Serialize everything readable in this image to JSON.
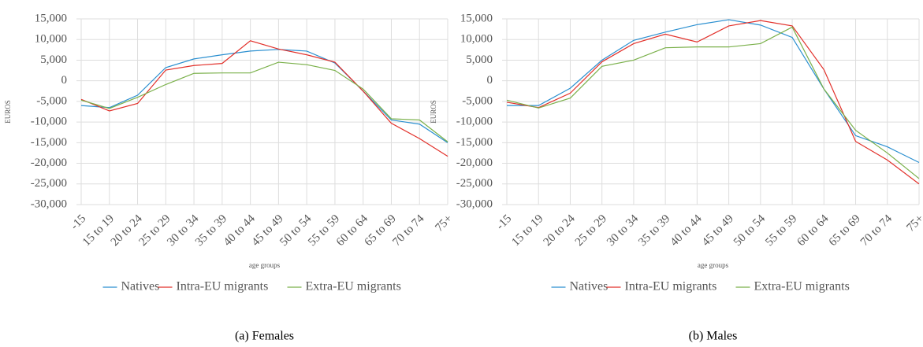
{
  "chart_data": [
    {
      "type": "line",
      "caption": "(a) Females",
      "y_label": "EUROS",
      "x_label": "age groups",
      "categories": [
        "-15",
        "15 to 19",
        "20 to 24",
        "25 to 29",
        "30 to 34",
        "35 to 39",
        "40 to 44",
        "45 to 49",
        "50 to 54",
        "55 to 59",
        "60 to 64",
        "65 to 69",
        "70 to 74",
        "75+"
      ],
      "ylim": [
        -30000,
        15000
      ],
      "yticks": [
        {
          "value": 15000,
          "label": "15,000"
        },
        {
          "value": 10000,
          "label": "10,000"
        },
        {
          "value": 5000,
          "label": "5,000"
        },
        0,
        {
          "value": -5000,
          "label": "-5,000"
        },
        {
          "value": -10000,
          "label": "-10,000"
        },
        {
          "value": -15000,
          "label": "-15,000"
        },
        {
          "value": -20000,
          "label": "-20,000"
        },
        {
          "value": -25000,
          "label": "-25,000"
        },
        {
          "value": -30000,
          "label": "-30,000"
        }
      ],
      "grid": true,
      "series": [
        {
          "name": "Natives",
          "color": "#2a8fd0",
          "values": [
            -6000,
            -6500,
            -3500,
            3200,
            5300,
            6300,
            7200,
            7600,
            7200,
            4300,
            -2500,
            -9500,
            -10500,
            -15000
          ]
        },
        {
          "name": "Intra-EU migrants",
          "color": "#e2302a",
          "values": [
            -4500,
            -7300,
            -5500,
            2600,
            3700,
            4200,
            9700,
            7700,
            6300,
            4500,
            -2500,
            -10300,
            -14000,
            -18300
          ]
        },
        {
          "name": "Extra-EU migrants",
          "color": "#7ab04a",
          "values": [
            -4700,
            -6700,
            -4000,
            -900,
            1800,
            1900,
            1900,
            4500,
            3900,
            2500,
            -2000,
            -9200,
            -9500,
            -14800
          ]
        }
      ]
    },
    {
      "type": "line",
      "caption": "(b) Males",
      "y_label": "EUROS",
      "x_label": "age groups",
      "categories": [
        "-15",
        "15 to 19",
        "20 to 24",
        "25 to 29",
        "30 to 34",
        "35 to 39",
        "40 to 44",
        "45 to 49",
        "50 to 54",
        "55 to 59",
        "60 to 64",
        "65 to 69",
        "70 to 74",
        "75+"
      ],
      "ylim": [
        -30000,
        15000
      ],
      "yticks": [
        {
          "value": 15000,
          "label": "15,000"
        },
        {
          "value": 10000,
          "label": "10,000"
        },
        {
          "value": 5000,
          "label": "5,000"
        },
        0,
        {
          "value": -5000,
          "label": "-5,000"
        },
        {
          "value": -10000,
          "label": "-10,000"
        },
        {
          "value": -15000,
          "label": "-15,000"
        },
        {
          "value": -20000,
          "label": "-20,000"
        },
        {
          "value": -25000,
          "label": "-25,000"
        },
        {
          "value": -30000,
          "label": "-30,000"
        }
      ],
      "grid": true,
      "series": [
        {
          "name": "Natives",
          "color": "#2a8fd0",
          "values": [
            -6000,
            -6000,
            -1800,
            5000,
            9800,
            11800,
            13600,
            14800,
            13500,
            10500,
            -2000,
            -13300,
            -16000,
            -19800
          ]
        },
        {
          "name": "Intra-EU migrants",
          "color": "#e2302a",
          "values": [
            -5200,
            -6500,
            -3000,
            4600,
            9000,
            11300,
            9400,
            13300,
            14600,
            13300,
            2700,
            -14700,
            -19200,
            -25000
          ]
        },
        {
          "name": "Extra-EU migrants",
          "color": "#7ab04a",
          "values": [
            -4700,
            -6600,
            -4200,
            3500,
            5000,
            8000,
            8200,
            8200,
            9000,
            13000,
            -2000,
            -12000,
            -17500,
            -23700
          ]
        }
      ]
    }
  ]
}
